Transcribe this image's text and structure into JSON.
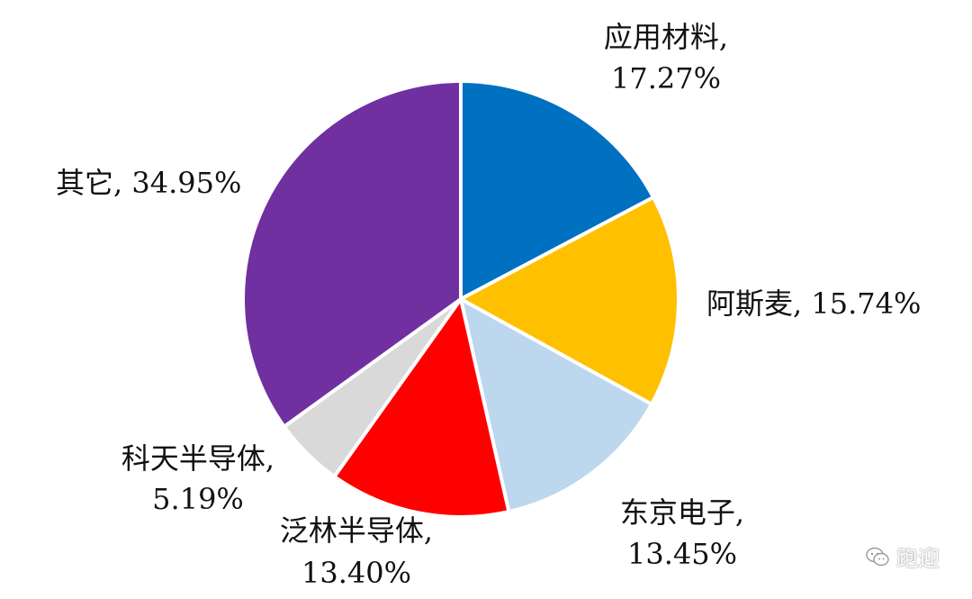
{
  "chart_data": {
    "type": "pie",
    "title": "",
    "start_angle_deg": 0,
    "direction": "clockwise",
    "slices": [
      {
        "name": "应用材料",
        "value": 17.27,
        "label_line1": "应用材料,",
        "label_line2": "17.27%",
        "color": "#0070C0"
      },
      {
        "name": "阿斯麦",
        "value": 15.74,
        "label_line1": "阿斯麦, 15.74%",
        "label_line2": "",
        "color": "#FFC000"
      },
      {
        "name": "东京电子",
        "value": 13.45,
        "label_line1": "东京电子,",
        "label_line2": "13.45%",
        "color": "#BDD7EE"
      },
      {
        "name": "泛林半导体",
        "value": 13.4,
        "label_line1": "泛林半导体,",
        "label_line2": "13.40%",
        "color": "#FF0000"
      },
      {
        "name": "科天半导体",
        "value": 5.19,
        "label_line1": "科天半导体,",
        "label_line2": "5.19%",
        "color": "#D9D9D9"
      },
      {
        "name": "其它",
        "value": 34.95,
        "label_line1": "其它, 34.95%",
        "label_line2": "",
        "color": "#7030A0"
      }
    ]
  },
  "watermark": {
    "text": "跑迎",
    "icon": "wechat-icon"
  }
}
